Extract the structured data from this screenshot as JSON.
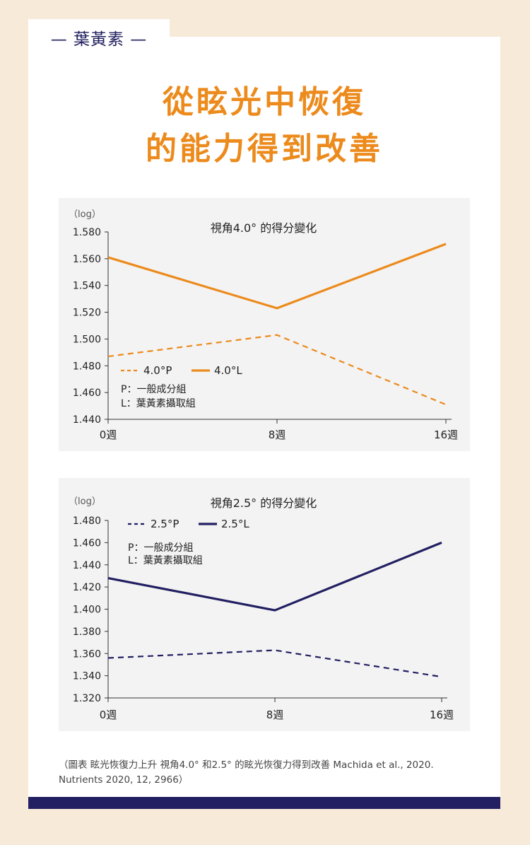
{
  "tag": "— 葉黃素 —",
  "title_line1": "從眩光中恢復",
  "title_line2": "的能力得到改善",
  "caption": "（圖表 眩光恢復力上升 視角4.0° 和2.5° 的眩光恢復力得到改善 Machida et al., 2020. Nutrients 2020, 12, 2966）",
  "colors": {
    "orange": "#ec8a1c",
    "navy": "#221f62"
  },
  "chart_data": [
    {
      "type": "line",
      "title": "視角4.0° 的得分變化",
      "ylabel": "（log）",
      "x": [
        "0週",
        "8週",
        "16週"
      ],
      "ylim": [
        1.44,
        1.58
      ],
      "yticks": [
        "1.580",
        "1.560",
        "1.540",
        "1.520",
        "1.500",
        "1.480",
        "1.460",
        "1.440"
      ],
      "series": [
        {
          "name": "4.0°P",
          "style": "dashed",
          "color": "#ec8a1c",
          "values": [
            1.487,
            1.503,
            1.451
          ]
        },
        {
          "name": "4.0°L",
          "style": "solid",
          "color": "#ec8a1c",
          "values": [
            1.561,
            1.523,
            1.571
          ]
        }
      ],
      "legend_position": "lower-left",
      "notes": [
        "P：一般成分組",
        "L：葉黃素攝取組"
      ]
    },
    {
      "type": "line",
      "title": "視角2.5° 的得分變化",
      "ylabel": "（log）",
      "x": [
        "0週",
        "8週",
        "16週"
      ],
      "ylim": [
        1.32,
        1.48
      ],
      "yticks": [
        "1.480",
        "1.460",
        "1.440",
        "1.420",
        "1.400",
        "1.380",
        "1.360",
        "1.340",
        "1.320"
      ],
      "series": [
        {
          "name": "2.5°P",
          "style": "dashed",
          "color": "#221f62",
          "values": [
            1.356,
            1.363,
            1.339
          ]
        },
        {
          "name": "2.5°L",
          "style": "solid",
          "color": "#221f62",
          "values": [
            1.428,
            1.399,
            1.46
          ]
        }
      ],
      "legend_position": "top-left",
      "notes": [
        "P：一般成分組",
        "L：葉黃素攝取組"
      ]
    }
  ]
}
